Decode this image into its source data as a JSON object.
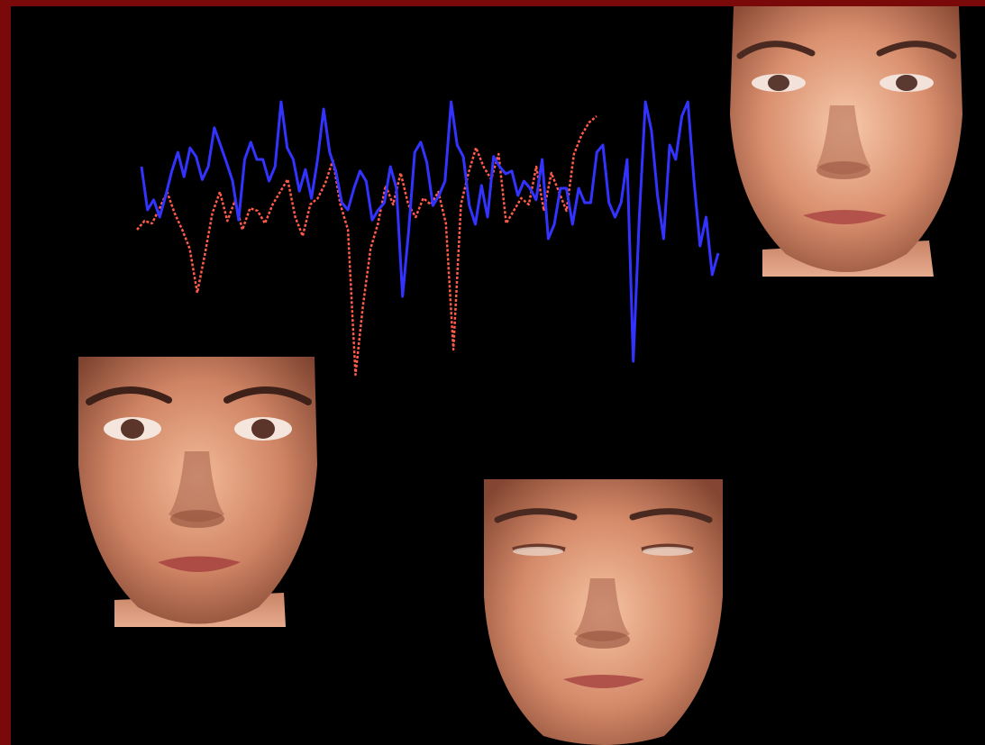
{
  "scene": {
    "description_colors": {
      "border": "#7a0a0a",
      "background": "#000000",
      "series_a_color": "#3333ff",
      "series_b_color": "#ff5a4a",
      "skin_light": "#f2b99a",
      "skin_dark": "#8a4a35"
    }
  },
  "chart_data": {
    "type": "line",
    "title": "",
    "xlabel": "",
    "ylabel": "",
    "series": [
      {
        "color": "#3333ff",
        "style": "solid",
        "values": [
          0.45,
          0.15,
          0.22,
          0.1,
          0.25,
          0.42,
          0.55,
          0.38,
          0.58,
          0.52,
          0.36,
          0.45,
          0.72,
          0.6,
          0.48,
          0.35,
          0.08,
          0.5,
          0.62,
          0.5,
          0.5,
          0.35,
          0.45,
          0.9,
          0.58,
          0.5,
          0.28,
          0.43,
          0.23,
          0.5,
          0.85,
          0.55,
          0.42,
          0.2,
          0.15,
          0.3,
          0.42,
          0.35,
          0.08,
          0.15,
          0.2,
          0.45,
          0.3,
          -0.45,
          0.0,
          0.55,
          0.62,
          0.48,
          0.18,
          0.25,
          0.35,
          0.9,
          0.6,
          0.52,
          0.18,
          0.05,
          0.32,
          0.1,
          0.52,
          0.45,
          0.4,
          0.42,
          0.25,
          0.35,
          0.3,
          0.22,
          0.5,
          -0.05,
          0.05,
          0.3,
          0.3,
          0.05,
          0.3,
          0.2,
          0.2,
          0.55,
          0.6,
          0.2,
          0.1,
          0.2,
          0.5,
          -0.9,
          0.1,
          0.9,
          0.7,
          0.25,
          -0.05,
          0.6,
          0.5,
          0.8,
          0.9,
          0.35,
          -0.1,
          0.1,
          -0.3,
          -0.15
        ]
      },
      {
        "color": "#ff5a4a",
        "style": "dashed",
        "values": [
          0.05,
          0.12,
          0.1,
          0.22,
          0.35,
          0.18,
          0.05,
          -0.1,
          -0.45,
          -0.15,
          0.18,
          0.35,
          0.12,
          0.28,
          0.05,
          0.22,
          0.2,
          0.1,
          0.25,
          0.35,
          0.45,
          0.15,
          0.0,
          0.25,
          0.3,
          0.42,
          0.6,
          0.25,
          0.05,
          -1.1,
          -0.55,
          -0.1,
          0.1,
          0.4,
          0.25,
          0.5,
          0.25,
          0.15,
          0.3,
          0.25,
          0.35,
          0.1,
          -0.9,
          0.25,
          0.5,
          0.7,
          0.55,
          0.45,
          0.65,
          0.1,
          0.2,
          0.3,
          0.25,
          0.55,
          0.2,
          0.5,
          0.35,
          0.2,
          0.65,
          0.8,
          0.9,
          0.95
        ]
      }
    ]
  }
}
